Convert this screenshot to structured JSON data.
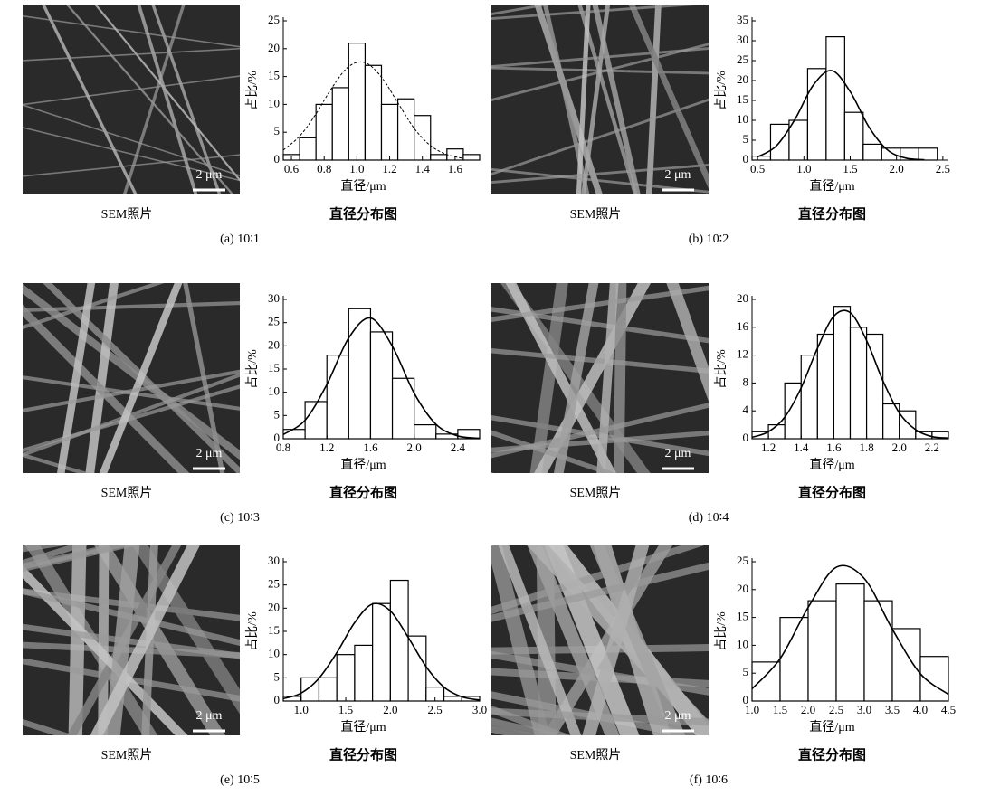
{
  "chart_data": [
    {
      "type": "histogram",
      "title": "直径分布图",
      "xlabel": "直径/μm",
      "ylabel": "占比/%",
      "photo_label": "SEM照片",
      "scale_bar": "2 μm",
      "caption": "(a) 10∶1",
      "bins": [
        0.55,
        0.65,
        0.75,
        0.85,
        0.95,
        1.05,
        1.15,
        1.25,
        1.35,
        1.45,
        1.55,
        1.65,
        1.75
      ],
      "values": [
        1,
        4,
        10,
        13,
        21,
        17,
        10,
        11,
        8,
        1,
        2,
        1
      ],
      "color": "#ffffff",
      "xlim": [
        0.55,
        1.75
      ],
      "xticks": [
        0.6,
        0.8,
        1.0,
        1.2,
        1.4,
        1.6
      ],
      "ylim": [
        0,
        25
      ],
      "yticks": [
        0,
        5,
        10,
        15,
        20,
        25
      ],
      "curve": {
        "x": [
          0.55,
          0.65,
          0.75,
          0.85,
          0.95,
          1.05,
          1.15,
          1.25,
          1.35,
          1.45,
          1.55,
          1.65
        ],
        "values": [
          1.8,
          4.3,
          8.3,
          13.1,
          16.8,
          17.5,
          14.9,
          10.3,
          5.7,
          2.6,
          1.0,
          0.3
        ],
        "color": "#000000",
        "style": "dashed"
      }
    },
    {
      "type": "histogram",
      "title": "直径分布图",
      "xlabel": "直径/μm",
      "ylabel": "占比/%",
      "photo_label": "SEM照片",
      "scale_bar": "2 μm",
      "caption": "(b) 10∶2",
      "bins": [
        0.44,
        0.64,
        0.84,
        1.04,
        1.24,
        1.44,
        1.64,
        1.84,
        2.04,
        2.24,
        2.44
      ],
      "values": [
        1,
        9,
        10,
        23,
        31,
        12,
        4,
        3,
        3,
        3
      ],
      "color": "#ffffff",
      "xlim": [
        0.44,
        2.56
      ],
      "xticks": [
        0.5,
        1.0,
        1.5,
        2.0,
        2.5
      ],
      "ylim": [
        0,
        35
      ],
      "yticks": [
        0,
        5,
        10,
        15,
        20,
        25,
        30,
        35
      ],
      "curve": {
        "x": [
          0.5,
          0.7,
          0.9,
          1.1,
          1.3,
          1.5,
          1.7,
          1.9,
          2.1,
          2.3
        ],
        "values": [
          0.8,
          3.5,
          10.1,
          18.8,
          22.5,
          17.2,
          8.4,
          2.6,
          0.5,
          0.1
        ],
        "color": "#000000",
        "style": "solid"
      }
    },
    {
      "type": "histogram",
      "title": "直径分布图",
      "xlabel": "直径/μm",
      "ylabel": "占比/%",
      "photo_label": "SEM照片",
      "scale_bar": "2 μm",
      "caption": "(c) 10∶3",
      "bins": [
        0.8,
        1.0,
        1.2,
        1.4,
        1.6,
        1.8,
        2.0,
        2.2,
        2.4,
        2.6
      ],
      "values": [
        2,
        8,
        18,
        28,
        23,
        13,
        3,
        1,
        2
      ],
      "color": "#ffffff",
      "xlim": [
        0.8,
        2.6
      ],
      "xticks": [
        0.8,
        1.2,
        1.6,
        2.0,
        2.4
      ],
      "ylim": [
        0,
        30
      ],
      "yticks": [
        0,
        5,
        10,
        15,
        20,
        25,
        30
      ],
      "curve": {
        "x": [
          0.8,
          1.0,
          1.2,
          1.4,
          1.6,
          1.8,
          2.0,
          2.2,
          2.4,
          2.6
        ],
        "values": [
          0.9,
          4.0,
          11.7,
          21.7,
          26,
          19.9,
          9.8,
          3.1,
          0.6,
          0.1
        ],
        "color": "#000000",
        "style": "solid"
      }
    },
    {
      "type": "histogram",
      "title": "直径分布图",
      "xlabel": "直径/μm",
      "ylabel": "占比/%",
      "photo_label": "SEM照片",
      "scale_bar": "2 μm",
      "caption": "(d) 10∶4",
      "bins": [
        1.1,
        1.2,
        1.3,
        1.4,
        1.5,
        1.6,
        1.7,
        1.8,
        1.9,
        2.0,
        2.1,
        2.2,
        2.3
      ],
      "values": [
        1,
        2,
        8,
        12,
        15,
        19,
        16,
        15,
        5,
        4,
        1,
        1
      ],
      "color": "#ffffff",
      "xlim": [
        1.1,
        2.3
      ],
      "xticks": [
        1.2,
        1.4,
        1.6,
        1.8,
        2.0,
        2.2
      ],
      "ylim": [
        0,
        20
      ],
      "yticks": [
        0,
        4,
        8,
        12,
        16,
        20
      ],
      "curve": {
        "x": [
          1.1,
          1.2,
          1.3,
          1.4,
          1.5,
          1.6,
          1.7,
          1.8,
          1.9,
          2.0,
          2.1,
          2.2,
          2.3
        ],
        "values": [
          0.2,
          1.0,
          3.1,
          7.3,
          13.0,
          17.6,
          18.1,
          14.1,
          8.3,
          3.7,
          1.3,
          0.3,
          0.1
        ],
        "color": "#000000",
        "style": "solid"
      }
    },
    {
      "type": "histogram",
      "title": "直径分布图",
      "xlabel": "直径/μm",
      "ylabel": "占比/%",
      "photo_label": "SEM照片",
      "scale_bar": "2 μm",
      "caption": "(e) 10∶5",
      "bins": [
        0.8,
        1.0,
        1.2,
        1.4,
        1.6,
        1.8,
        2.0,
        2.2,
        2.4,
        2.6,
        2.8,
        3.0
      ],
      "values": [
        1,
        5,
        5,
        10,
        12,
        21,
        26,
        14,
        3,
        1,
        1
      ],
      "color": "#ffffff",
      "xlim": [
        0.8,
        3.0
      ],
      "xticks": [
        1.0,
        1.5,
        2.0,
        2.5,
        3.0
      ],
      "ylim": [
        0,
        30
      ],
      "yticks": [
        0,
        5,
        10,
        15,
        20,
        25,
        30
      ],
      "curve": {
        "x": [
          0.8,
          1.0,
          1.2,
          1.4,
          1.6,
          1.8,
          2.0,
          2.2,
          2.4,
          2.6,
          2.8,
          3.0
        ],
        "values": [
          0.5,
          1.7,
          4.9,
          10.4,
          16.9,
          20.9,
          19.4,
          13.7,
          7.4,
          3.0,
          0.9,
          0.2
        ],
        "color": "#000000",
        "style": "solid"
      }
    },
    {
      "type": "histogram",
      "title": "直径分布图",
      "xlabel": "直径/μm",
      "ylabel": "占比/%",
      "photo_label": "SEM照片",
      "scale_bar": "2 μm",
      "caption": "(f) 10∶6",
      "bins": [
        1.0,
        1.5,
        2.0,
        2.5,
        3.0,
        3.5,
        4.0,
        4.5
      ],
      "values": [
        7,
        15,
        18,
        21,
        18,
        13,
        8
      ],
      "color": "#ffffff",
      "xlim": [
        1.0,
        4.5
      ],
      "xticks": [
        1.0,
        1.5,
        2.0,
        2.5,
        3.0,
        3.5,
        4.0,
        4.5
      ],
      "ylim": [
        0,
        25
      ],
      "yticks": [
        0,
        5,
        10,
        15,
        20,
        25
      ],
      "curve": {
        "x": [
          1.0,
          1.5,
          2.0,
          2.5,
          3.0,
          3.5,
          4.0,
          4.5
        ],
        "values": [
          2.2,
          7.6,
          16.8,
          24.0,
          22.0,
          12.9,
          4.9,
          1.2
        ],
        "color": "#000000",
        "style": "solid"
      }
    }
  ]
}
